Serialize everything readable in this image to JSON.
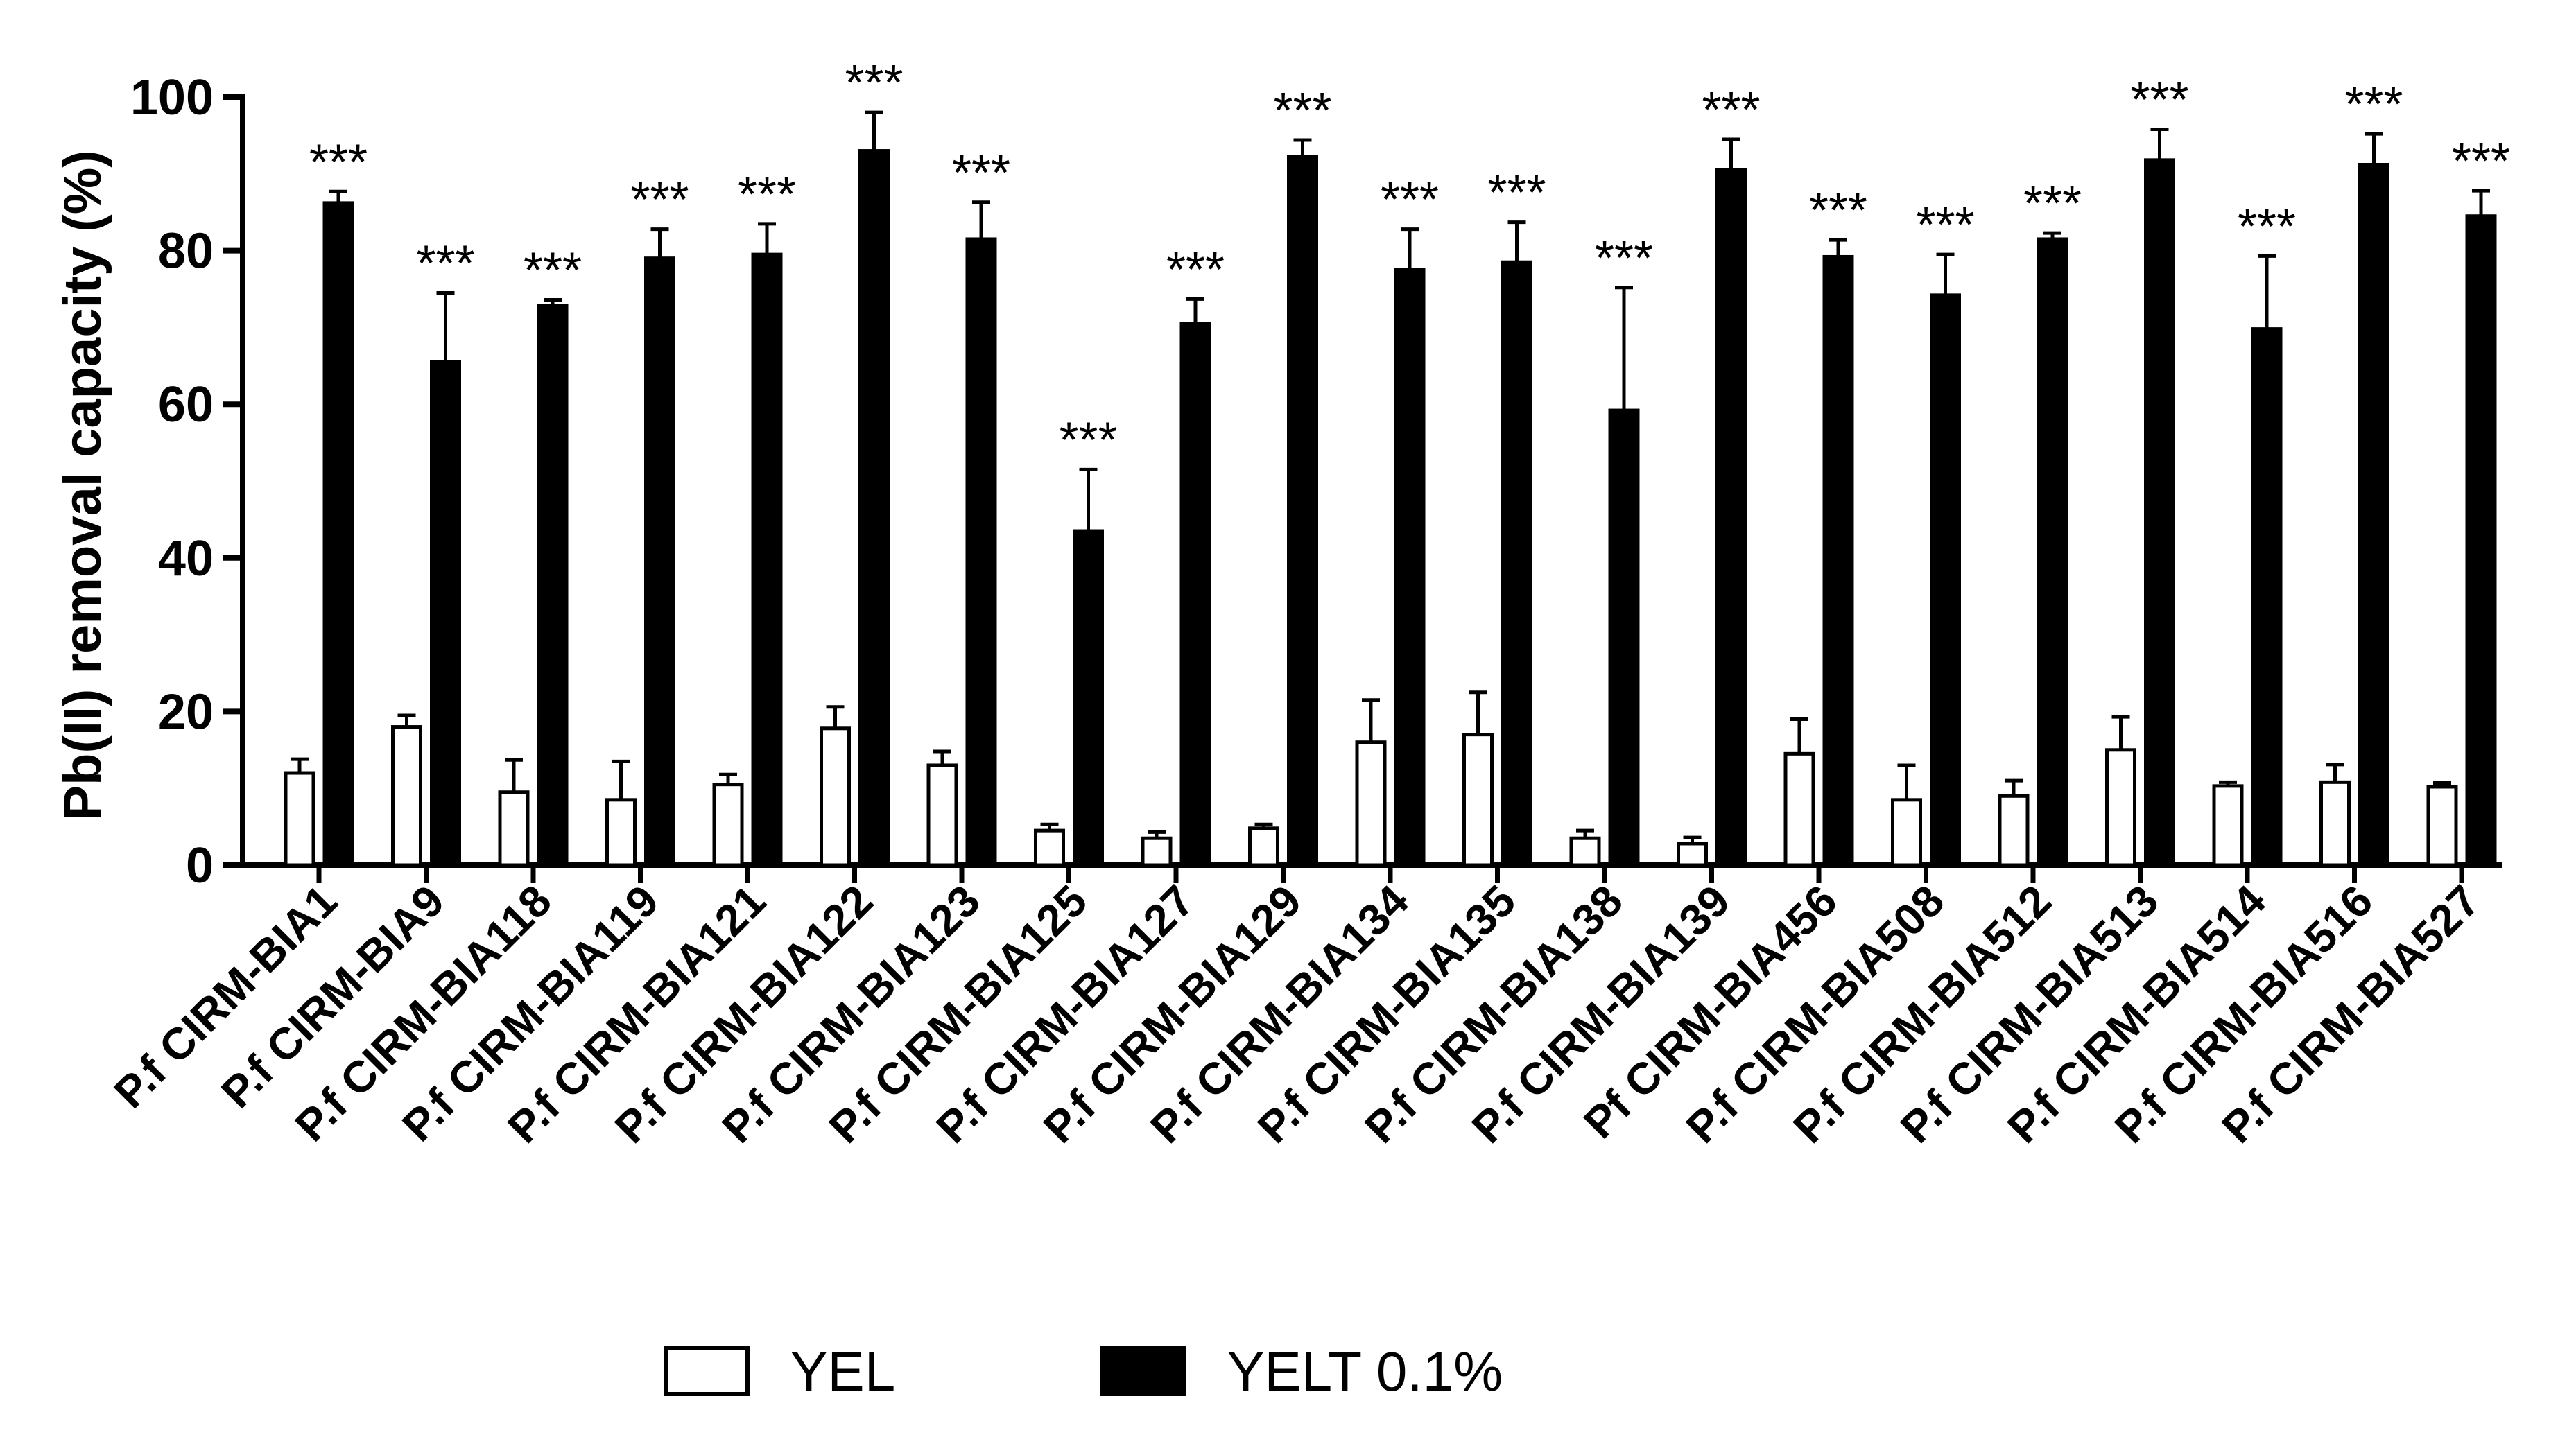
{
  "chart_data": {
    "type": "bar",
    "title": "",
    "xlabel": "",
    "ylabel": "Pb(II) removal capacity (%)",
    "ylim": [
      0,
      100
    ],
    "yticks": [
      0,
      20,
      40,
      60,
      80,
      100
    ],
    "grid": false,
    "legend_position": "bottom-center",
    "categories": [
      "P.f CIRM-BIA1",
      "P.f CIRM-BIA9",
      "P.f CIRM-BIA118",
      "P.f CIRM-BIA119",
      "P.f CIRM-BIA121",
      "P.f CIRM-BIA122",
      "P.f CIRM-BIA123",
      "P.f CIRM-BIA125",
      "P.f CIRM-BIA127",
      "P.f CIRM-BIA129",
      "P.f CIRM-BIA134",
      "P.f CIRM-BIA135",
      "P.f CIRM-BIA138",
      "P.f CIRM-BIA139",
      "Pf CIRM-BIA456",
      "P.f CIRM-BIA508",
      "P.f CIRM-BIA512",
      "P.f CIRM-BIA513",
      "P.f CIRM-BIA514",
      "P.f CIRM-BIA516",
      "P.f CIRM-BIA527"
    ],
    "series": [
      {
        "name": "YEL",
        "color": "#ffffff",
        "stroke": "#000000",
        "values": [
          12,
          18,
          9.5,
          8.5,
          10.5,
          17.8,
          13,
          4.5,
          3.5,
          4.8,
          16,
          17,
          3.5,
          2.8,
          14.5,
          8.5,
          9,
          15,
          10.3,
          10.8,
          10.2
        ],
        "errors": [
          1.8,
          1.5,
          4.2,
          5,
          1.3,
          2.8,
          1.8,
          0.8,
          0.8,
          0.5,
          5.5,
          5.5,
          1,
          0.8,
          4.5,
          4.5,
          2,
          4.3,
          0.5,
          2.3,
          0.5
        ]
      },
      {
        "name": "YELT 0.1%",
        "color": "#000000",
        "stroke": "#000000",
        "values": [
          86.2,
          65.5,
          72.8,
          79,
          79.5,
          93,
          81.5,
          43.5,
          70.5,
          92.2,
          77.5,
          78.5,
          59.2,
          90.5,
          79.2,
          74.2,
          81.5,
          91.8,
          69.8,
          91.2,
          84.5
        ],
        "errors": [
          1.5,
          9,
          0.8,
          3.8,
          4,
          5,
          4.8,
          8,
          3.2,
          2.2,
          5.3,
          5.2,
          16,
          4,
          2.2,
          5.3,
          0.8,
          4,
          9.5,
          4,
          3.3
        ]
      }
    ],
    "significance_label": "***"
  }
}
